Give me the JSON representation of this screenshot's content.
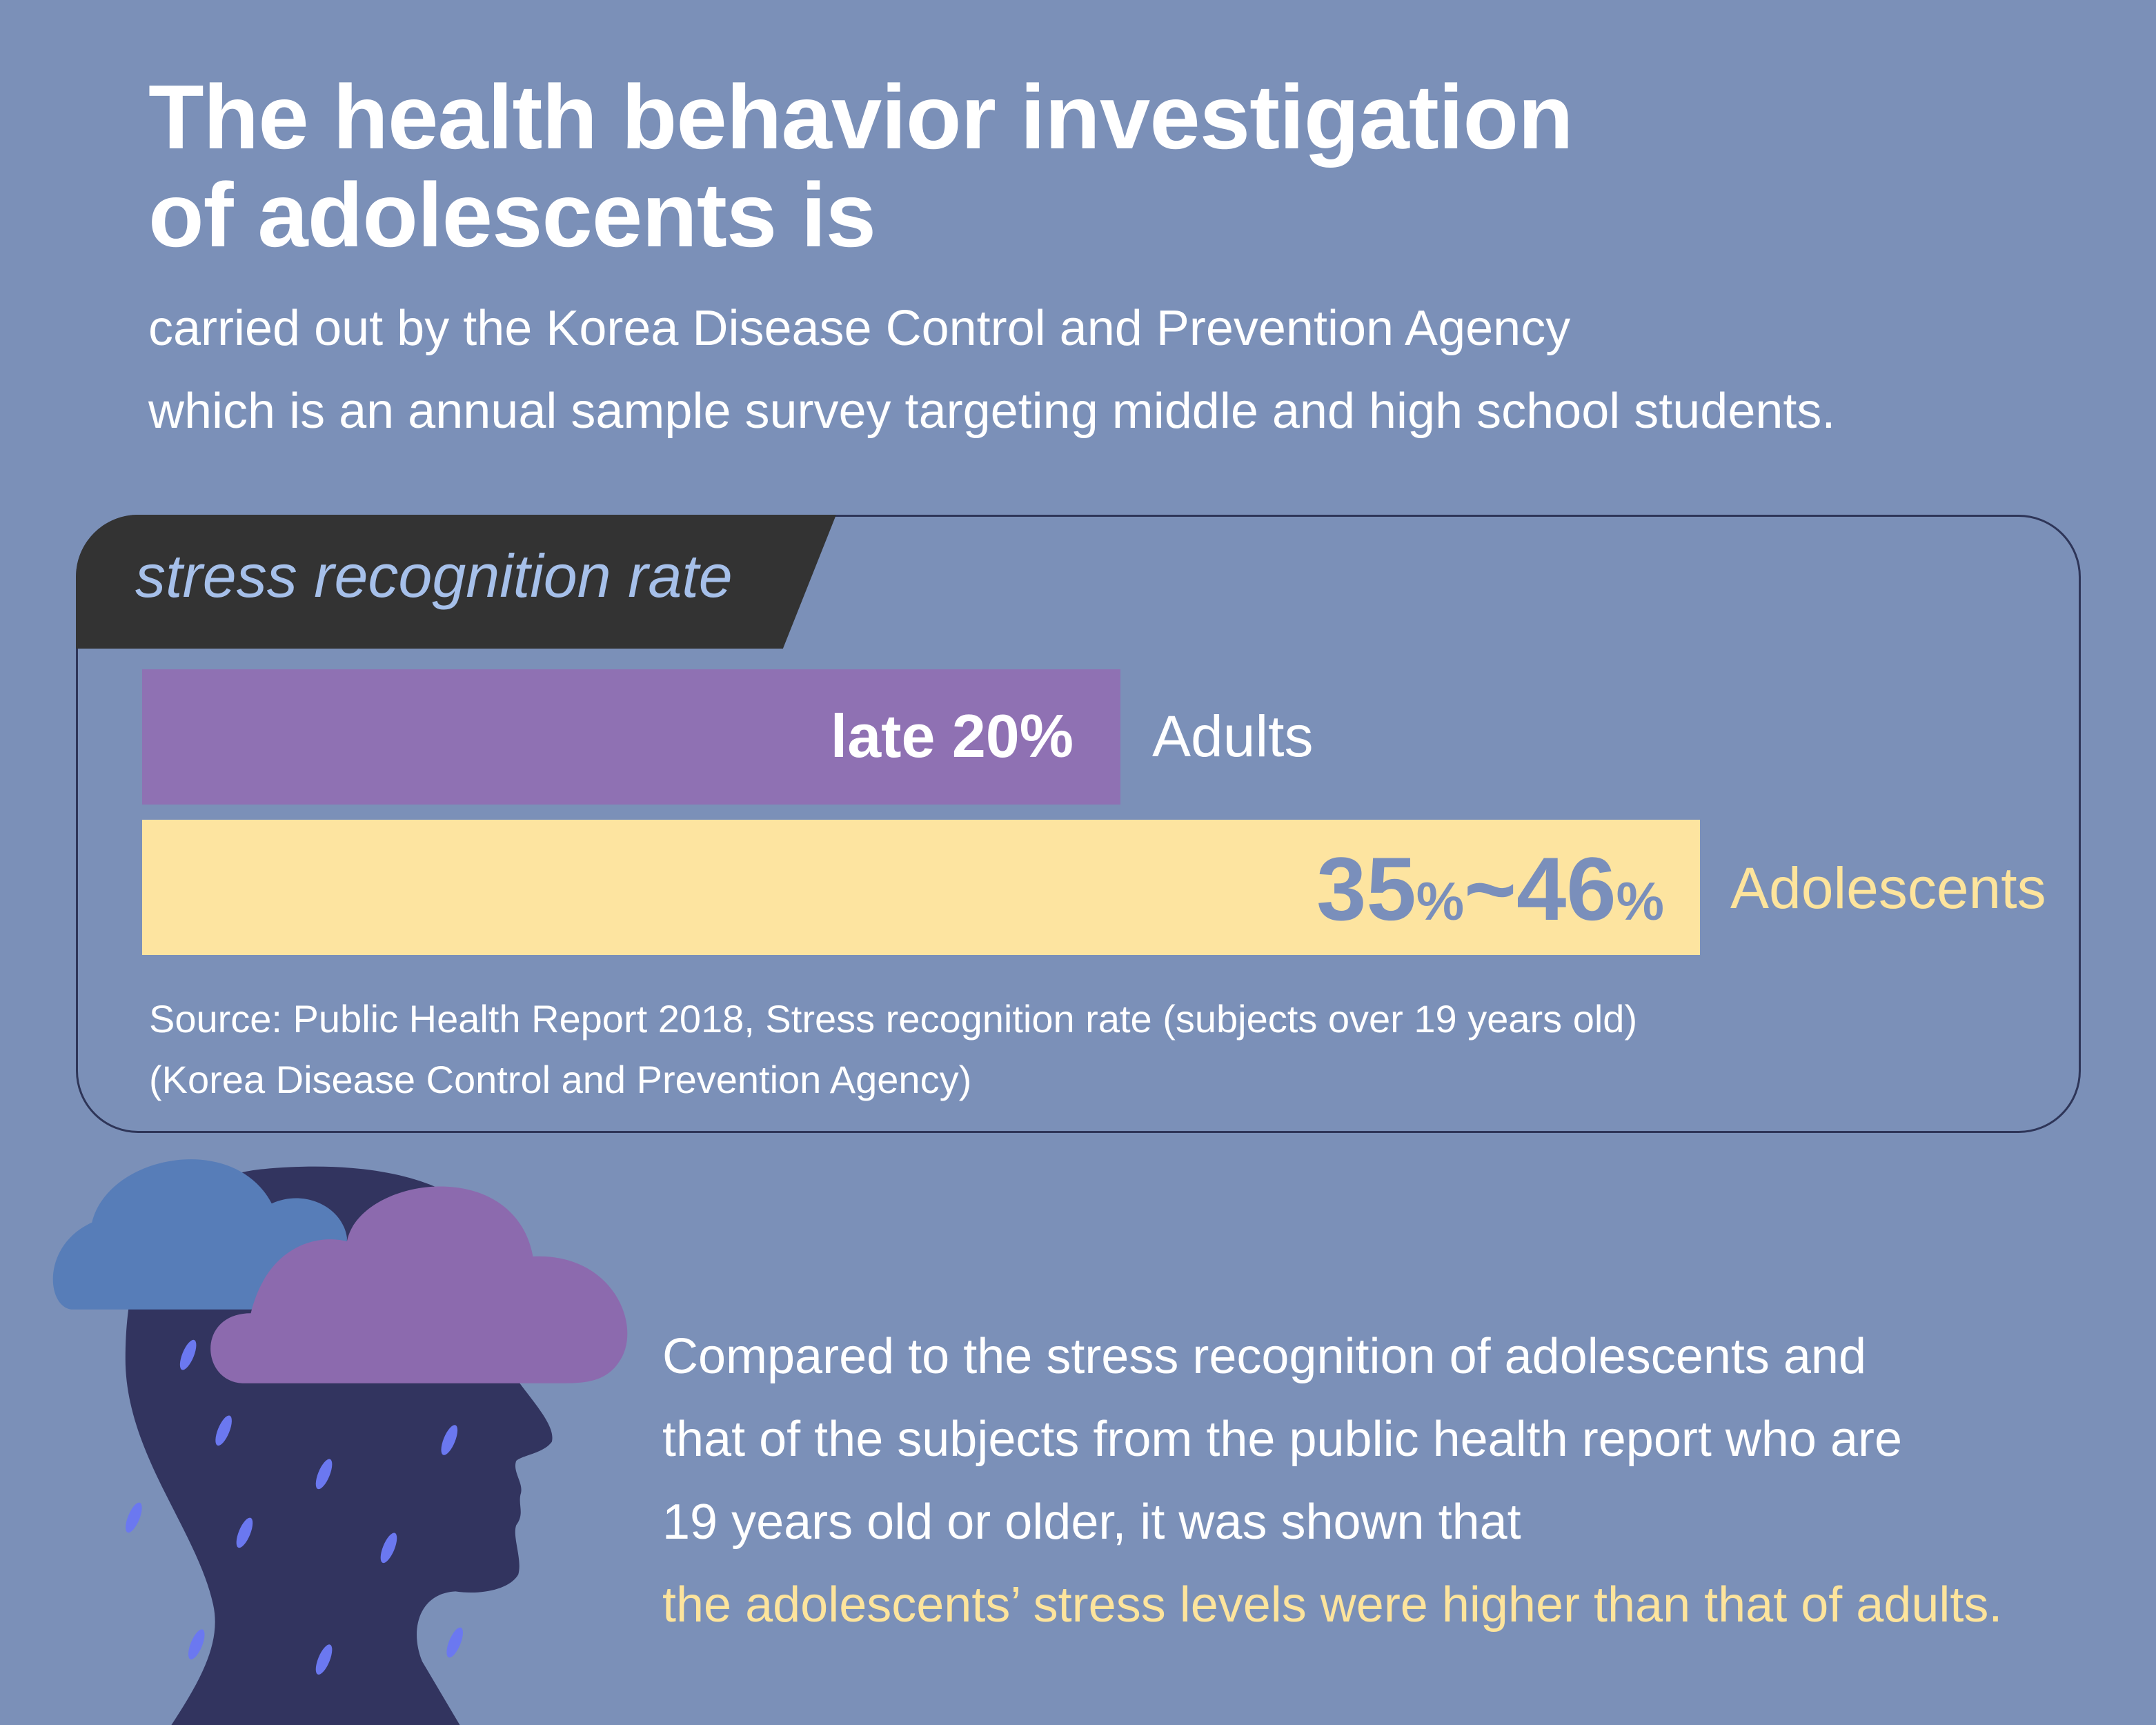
{
  "title": {
    "line1": "The health behavior investigation",
    "line2": "of adolescents is"
  },
  "subtitle": {
    "line1": "carried out by the Korea Disease Control and Prevention Agency",
    "line2": "which is an annual sample survey targeting middle and high school students."
  },
  "chart_data": {
    "type": "bar",
    "title": "stress recognition rate",
    "categories": [
      "Adults",
      "Adolescents"
    ],
    "values": [
      20,
      46
    ],
    "labels": [
      "late 20%",
      "35%~46%"
    ],
    "adolescents_range": [
      35,
      46
    ],
    "colors": {
      "adults": "#8f71b3",
      "adolescents": "#fde4a0"
    },
    "value_label_parts": {
      "a": "35",
      "a_pct": "%",
      "sep": "~",
      "b": "46",
      "b_pct": "%"
    }
  },
  "source": {
    "line1": "Source: Public Health Report 2018, Stress recognition rate (subjects over 19 years old)",
    "line2": "(Korea Disease Control and Prevention Agency)"
  },
  "conclusion": {
    "line1": "Compared to the stress recognition of adolescents and",
    "line2": "that of the subjects from the public health report who are",
    "line3": "19 years old or older, it was shown that",
    "highlight": "the adolescents’ stress levels were higher than that of adults."
  },
  "colors": {
    "background": "#7b90b8",
    "highlight": "#fde49c",
    "tab": "#333333"
  }
}
